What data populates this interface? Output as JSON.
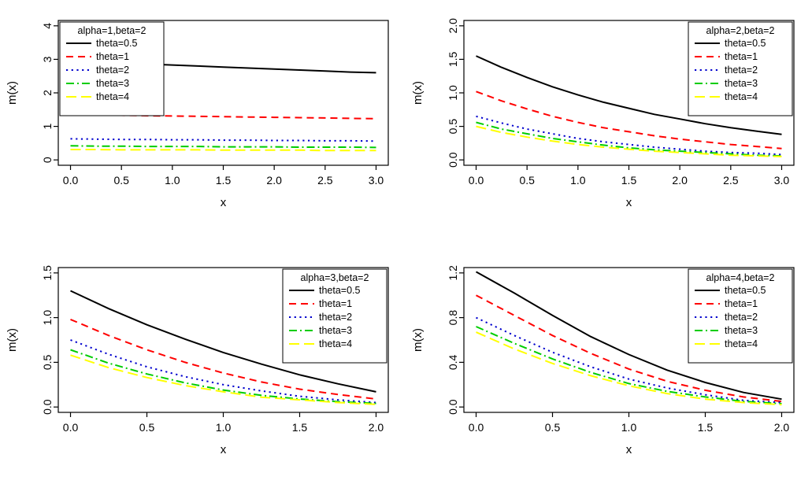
{
  "page": {
    "background": "#ffffff",
    "text_color": "#000000"
  },
  "chart_data": [
    {
      "type": "line",
      "legend_title": "alpha=1,beta=2",
      "legend_position": "topleft",
      "xlabel": "x",
      "ylabel": "m(x)",
      "xlim": [
        0,
        3
      ],
      "ylim": [
        0,
        4
      ],
      "xticks": [
        0,
        0.5,
        1,
        1.5,
        2,
        2.5,
        3
      ],
      "xtick_labels": [
        "0.0",
        "0.5",
        "1.0",
        "1.5",
        "2.0",
        "2.5",
        "3.0"
      ],
      "yticks": [
        0,
        1,
        2,
        3,
        4
      ],
      "ytick_labels": [
        "0",
        "1",
        "2",
        "3",
        "4"
      ],
      "grid": false,
      "x": [
        0,
        0.25,
        0.5,
        0.75,
        1,
        1.25,
        1.5,
        1.75,
        2,
        2.25,
        2.5,
        2.75,
        3
      ],
      "series": [
        {
          "name": "theta=0.5",
          "color": "#000000",
          "linetype": "solid",
          "values": [
            2.95,
            2.92,
            2.89,
            2.86,
            2.83,
            2.8,
            2.77,
            2.74,
            2.71,
            2.68,
            2.65,
            2.62,
            2.6
          ]
        },
        {
          "name": "theta=1",
          "color": "#FF0000",
          "linetype": "dashed",
          "values": [
            1.36,
            1.34,
            1.33,
            1.32,
            1.31,
            1.3,
            1.29,
            1.28,
            1.27,
            1.26,
            1.25,
            1.24,
            1.23
          ]
        },
        {
          "name": "theta=2",
          "color": "#0000CD",
          "linetype": "dotted",
          "values": [
            0.63,
            0.62,
            0.61,
            0.61,
            0.6,
            0.6,
            0.59,
            0.59,
            0.58,
            0.58,
            0.57,
            0.57,
            0.56
          ]
        },
        {
          "name": "theta=3",
          "color": "#00CD00",
          "linetype": "dotdash",
          "values": [
            0.42,
            0.41,
            0.41,
            0.4,
            0.4,
            0.4,
            0.39,
            0.39,
            0.39,
            0.38,
            0.38,
            0.38,
            0.37
          ]
        },
        {
          "name": "theta=4",
          "color": "#FFFF00",
          "linetype": "longdash",
          "values": [
            0.31,
            0.31,
            0.3,
            0.3,
            0.3,
            0.3,
            0.29,
            0.29,
            0.29,
            0.29,
            0.28,
            0.28,
            0.28
          ]
        }
      ]
    },
    {
      "type": "line",
      "legend_title": "alpha=2,beta=2",
      "legend_position": "topright",
      "xlabel": "x",
      "ylabel": "m(x)",
      "xlim": [
        0,
        3
      ],
      "ylim": [
        0,
        2
      ],
      "xticks": [
        0,
        0.5,
        1,
        1.5,
        2,
        2.5,
        3
      ],
      "xtick_labels": [
        "0.0",
        "0.5",
        "1.0",
        "1.5",
        "2.0",
        "2.5",
        "3.0"
      ],
      "yticks": [
        0,
        0.5,
        1,
        1.5,
        2
      ],
      "ytick_labels": [
        "0.0",
        "0.5",
        "1.0",
        "1.5",
        "2.0"
      ],
      "grid": false,
      "x": [
        0,
        0.25,
        0.5,
        0.75,
        1,
        1.25,
        1.5,
        1.75,
        2,
        2.25,
        2.5,
        2.75,
        3
      ],
      "series": [
        {
          "name": "theta=0.5",
          "color": "#000000",
          "linetype": "solid",
          "values": [
            1.55,
            1.38,
            1.23,
            1.09,
            0.97,
            0.86,
            0.77,
            0.68,
            0.61,
            0.54,
            0.48,
            0.43,
            0.38
          ]
        },
        {
          "name": "theta=1",
          "color": "#FF0000",
          "linetype": "dashed",
          "values": [
            1.02,
            0.88,
            0.76,
            0.65,
            0.56,
            0.48,
            0.42,
            0.36,
            0.31,
            0.27,
            0.23,
            0.2,
            0.17
          ]
        },
        {
          "name": "theta=2",
          "color": "#0000CD",
          "linetype": "dotted",
          "values": [
            0.65,
            0.55,
            0.46,
            0.39,
            0.32,
            0.27,
            0.23,
            0.19,
            0.16,
            0.13,
            0.11,
            0.1,
            0.08
          ]
        },
        {
          "name": "theta=3",
          "color": "#00CD00",
          "linetype": "dotdash",
          "values": [
            0.56,
            0.46,
            0.39,
            0.32,
            0.27,
            0.22,
            0.18,
            0.15,
            0.13,
            0.11,
            0.09,
            0.07,
            0.06
          ]
        },
        {
          "name": "theta=4",
          "color": "#FFFF00",
          "linetype": "longdash",
          "values": [
            0.5,
            0.41,
            0.34,
            0.28,
            0.23,
            0.19,
            0.16,
            0.13,
            0.11,
            0.09,
            0.07,
            0.06,
            0.05
          ]
        }
      ]
    },
    {
      "type": "line",
      "legend_title": "alpha=3,beta=2",
      "legend_position": "topright",
      "xlabel": "x",
      "ylabel": "m(x)",
      "xlim": [
        0,
        2
      ],
      "ylim": [
        0,
        1.5
      ],
      "xticks": [
        0,
        0.5,
        1,
        1.5,
        2
      ],
      "xtick_labels": [
        "0.0",
        "0.5",
        "1.0",
        "1.5",
        "2.0"
      ],
      "yticks": [
        0,
        0.5,
        1,
        1.5
      ],
      "ytick_labels": [
        "0.0",
        "0.5",
        "1.0",
        "1.5"
      ],
      "grid": false,
      "x": [
        0,
        0.25,
        0.5,
        0.75,
        1,
        1.25,
        1.5,
        1.75,
        2
      ],
      "series": [
        {
          "name": "theta=0.5",
          "color": "#000000",
          "linetype": "solid",
          "values": [
            1.3,
            1.1,
            0.92,
            0.76,
            0.61,
            0.48,
            0.36,
            0.26,
            0.17
          ]
        },
        {
          "name": "theta=1",
          "color": "#FF0000",
          "linetype": "dashed",
          "values": [
            0.98,
            0.8,
            0.64,
            0.5,
            0.38,
            0.28,
            0.2,
            0.14,
            0.09
          ]
        },
        {
          "name": "theta=2",
          "color": "#0000CD",
          "linetype": "dotted",
          "values": [
            0.75,
            0.59,
            0.45,
            0.34,
            0.25,
            0.18,
            0.12,
            0.08,
            0.05
          ]
        },
        {
          "name": "theta=3",
          "color": "#00CD00",
          "linetype": "dotdash",
          "values": [
            0.64,
            0.49,
            0.37,
            0.27,
            0.19,
            0.13,
            0.09,
            0.06,
            0.04
          ]
        },
        {
          "name": "theta=4",
          "color": "#FFFF00",
          "linetype": "longdash",
          "values": [
            0.58,
            0.44,
            0.33,
            0.24,
            0.17,
            0.11,
            0.08,
            0.05,
            0.03
          ]
        }
      ]
    },
    {
      "type": "line",
      "legend_title": "alpha=4,beta=2",
      "legend_position": "topright",
      "xlabel": "x",
      "ylabel": "m(x)",
      "xlim": [
        0,
        2
      ],
      "ylim": [
        0,
        1.2
      ],
      "xticks": [
        0,
        0.5,
        1,
        1.5,
        2
      ],
      "xtick_labels": [
        "0.0",
        "0.5",
        "1.0",
        "1.5",
        "2.0"
      ],
      "yticks": [
        0,
        0.4,
        0.8,
        1.2
      ],
      "ytick_labels": [
        "0.0",
        "0.4",
        "0.8",
        "1.2"
      ],
      "grid": false,
      "x": [
        0,
        0.25,
        0.5,
        0.75,
        1,
        1.25,
        1.5,
        1.75,
        2
      ],
      "series": [
        {
          "name": "theta=0.5",
          "color": "#000000",
          "linetype": "solid",
          "values": [
            1.21,
            1.02,
            0.82,
            0.63,
            0.47,
            0.33,
            0.22,
            0.13,
            0.07
          ]
        },
        {
          "name": "theta=1",
          "color": "#FF0000",
          "linetype": "dashed",
          "values": [
            1.0,
            0.82,
            0.64,
            0.48,
            0.34,
            0.23,
            0.15,
            0.09,
            0.05
          ]
        },
        {
          "name": "theta=2",
          "color": "#0000CD",
          "linetype": "dotted",
          "values": [
            0.8,
            0.64,
            0.49,
            0.36,
            0.25,
            0.17,
            0.11,
            0.06,
            0.04
          ]
        },
        {
          "name": "theta=3",
          "color": "#00CD00",
          "linetype": "dotdash",
          "values": [
            0.72,
            0.57,
            0.43,
            0.31,
            0.21,
            0.14,
            0.09,
            0.05,
            0.03
          ]
        },
        {
          "name": "theta=4",
          "color": "#FFFF00",
          "linetype": "longdash",
          "values": [
            0.67,
            0.52,
            0.39,
            0.28,
            0.19,
            0.12,
            0.07,
            0.04,
            0.02
          ]
        }
      ]
    }
  ]
}
